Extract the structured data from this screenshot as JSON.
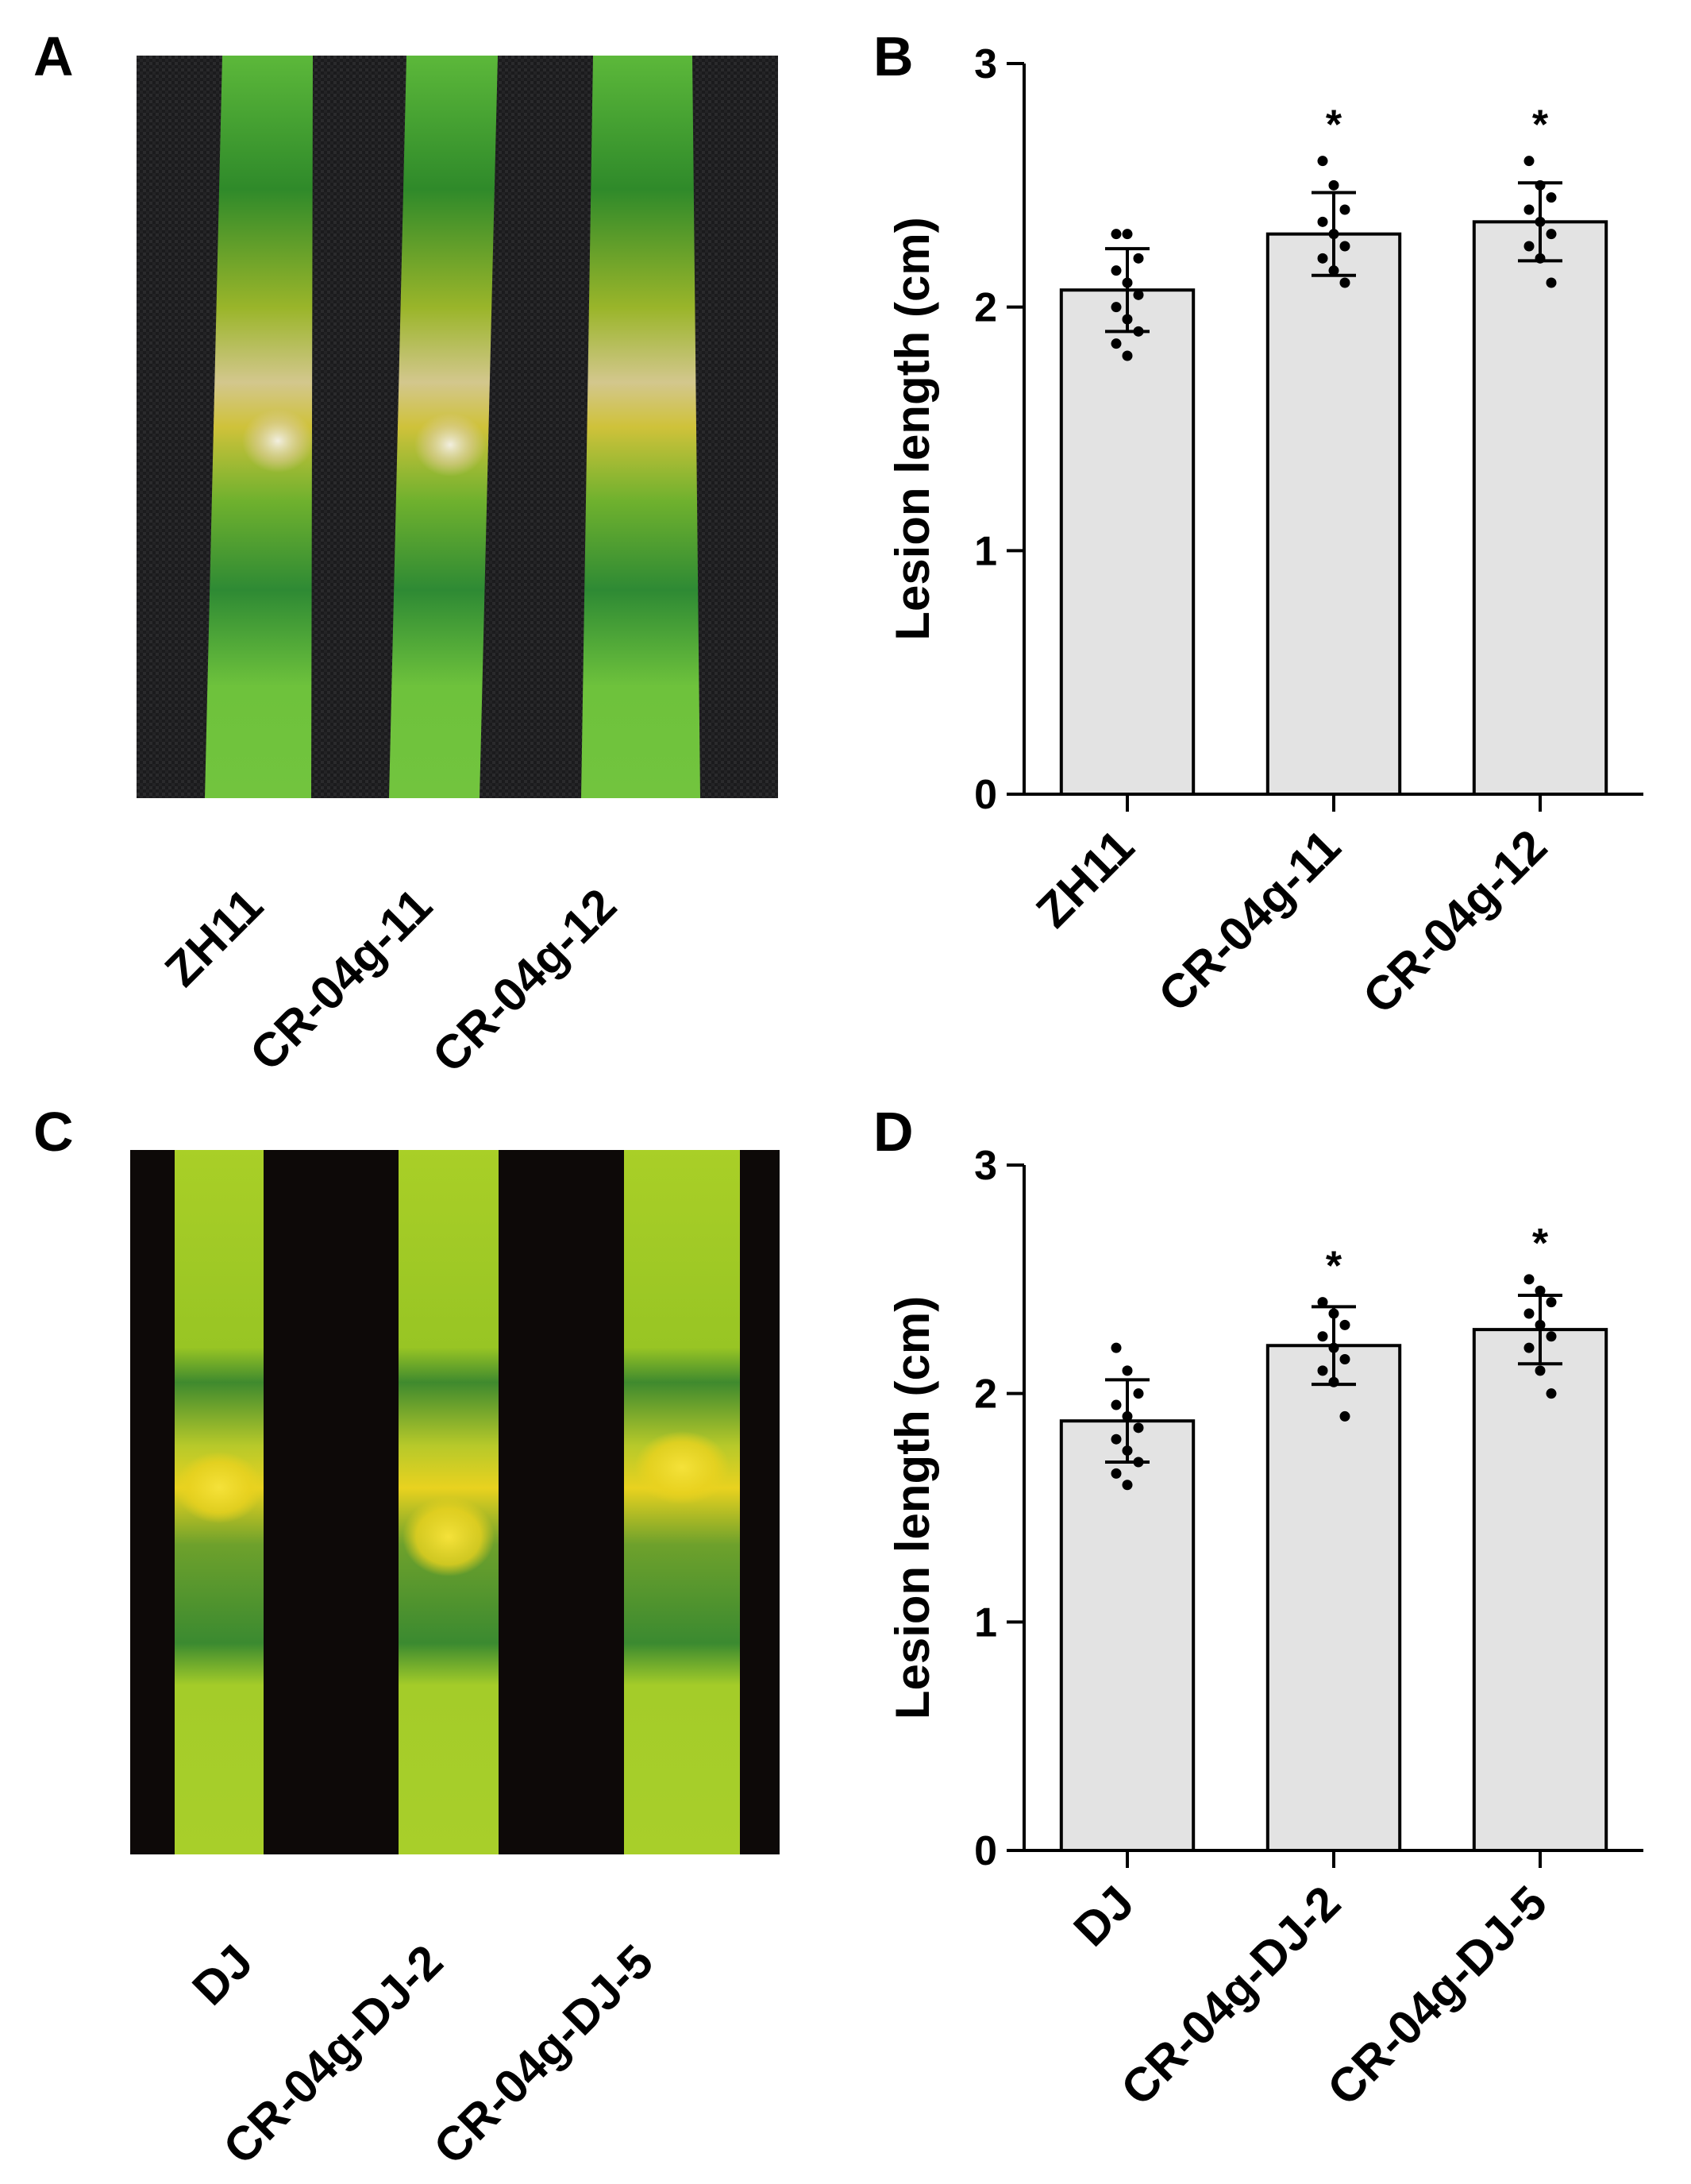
{
  "panels": {
    "a": {
      "letter": "A",
      "photo_labels": [
        "ZH11",
        "CR-04g-11",
        "CR-04g-12"
      ]
    },
    "b": {
      "letter": "B"
    },
    "c": {
      "letter": "C",
      "photo_labels": [
        "DJ",
        "CR-04g-DJ-2",
        "CR-04g-DJ-5"
      ]
    },
    "d": {
      "letter": "D"
    }
  },
  "colors": {
    "bar_fill": "#e3e3e3",
    "photo_bg_a": "#1b1b1d",
    "photo_bg_c": "#0d0908",
    "leaf_green": "#5fb22a",
    "leaf_dark_green": "#1f7a2a",
    "lesion_yellow": "#d9c91f",
    "lesion_tan": "#cdbf8e",
    "leaf_yellow_green": "#a8cc24"
  },
  "chart_data": [
    {
      "type": "bar",
      "categories": [
        "ZH11",
        "CR-04g-11",
        "CR-04g-12"
      ],
      "values": [
        2.07,
        2.3,
        2.35
      ],
      "error": [
        0.17,
        0.17,
        0.16
      ],
      "points": [
        [
          2.3,
          2.3,
          2.2,
          2.15,
          2.1,
          2.05,
          2.0,
          1.95,
          1.9,
          1.85,
          1.8
        ],
        [
          2.6,
          2.5,
          2.4,
          2.35,
          2.3,
          2.25,
          2.2,
          2.15,
          2.1
        ],
        [
          2.6,
          2.5,
          2.45,
          2.4,
          2.35,
          2.3,
          2.25,
          2.2,
          2.1
        ]
      ],
      "significance": [
        "",
        "*",
        "*"
      ],
      "ylabel": "Lesion length (cm)",
      "ylim": [
        0,
        3
      ],
      "yticks": [
        0,
        1,
        2,
        3
      ],
      "grid": false
    },
    {
      "type": "bar",
      "categories": [
        "DJ",
        "CR-04g-DJ-2",
        "CR-04g-DJ-5"
      ],
      "values": [
        1.88,
        2.21,
        2.28
      ],
      "error": [
        0.18,
        0.17,
        0.15
      ],
      "points": [
        [
          2.2,
          2.1,
          2.0,
          1.95,
          1.9,
          1.85,
          1.8,
          1.75,
          1.7,
          1.65,
          1.6
        ],
        [
          2.4,
          2.35,
          2.3,
          2.25,
          2.2,
          2.15,
          2.1,
          2.05,
          1.9
        ],
        [
          2.5,
          2.45,
          2.4,
          2.35,
          2.3,
          2.25,
          2.2,
          2.1,
          2.0
        ]
      ],
      "significance": [
        "",
        "*",
        "*"
      ],
      "ylabel": "Lesion length (cm)",
      "ylim": [
        0,
        3
      ],
      "yticks": [
        0,
        1,
        2,
        3
      ],
      "grid": false
    }
  ]
}
